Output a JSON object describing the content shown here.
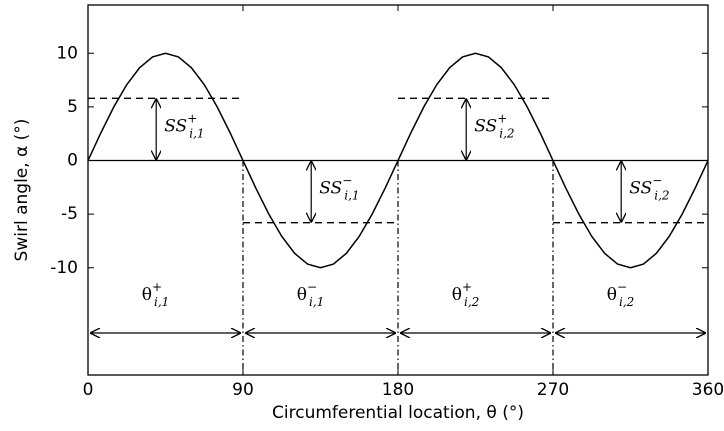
{
  "chart_data": {
    "type": "line",
    "xlabel": "Circumferential location, θ (°)",
    "ylabel": "Swirl angle, α (°)",
    "x": [
      0,
      7.5,
      15,
      22.5,
      30,
      37.5,
      45,
      52.5,
      60,
      67.5,
      75,
      82.5,
      90,
      97.5,
      105,
      112.5,
      120,
      127.5,
      135,
      142.5,
      150,
      157.5,
      165,
      172.5,
      180,
      187.5,
      195,
      202.5,
      210,
      217.5,
      225,
      232.5,
      240,
      247.5,
      255,
      262.5,
      270,
      277.5,
      285,
      292.5,
      300,
      307.5,
      315,
      322.5,
      330,
      337.5,
      345,
      352.5,
      360
    ],
    "series": [
      {
        "color": "#000000",
        "values": [
          0,
          2.59,
          5,
          7.07,
          8.66,
          9.66,
          10,
          9.66,
          8.66,
          7.07,
          5,
          2.59,
          0,
          -2.59,
          -5,
          -7.07,
          -8.66,
          -9.66,
          -10,
          -9.66,
          -8.66,
          -7.07,
          -5,
          -2.59,
          0,
          2.59,
          5,
          7.07,
          8.66,
          9.66,
          10,
          9.66,
          8.66,
          7.07,
          5,
          2.59,
          0,
          -2.59,
          -5,
          -7.07,
          -8.66,
          -9.66,
          -10,
          -9.66,
          -8.66,
          -7.07,
          -5,
          -2.59,
          0
        ]
      }
    ],
    "xlim": [
      0,
      360
    ],
    "ylim": [
      -20,
      14.5
    ],
    "xticks": [
      0,
      90,
      180,
      270,
      360
    ],
    "yticks": [
      -10,
      -5,
      0,
      5,
      10
    ],
    "reference_line": 0,
    "segments": [
      {
        "x": [
          0,
          90
        ],
        "level": 5.8,
        "ss": {
          "base": "SS",
          "sup": "+",
          "sub": "i,1"
        },
        "theta": {
          "base": "θ",
          "sup": "+",
          "sub": "i,1"
        }
      },
      {
        "x": [
          90,
          180
        ],
        "level": -5.8,
        "ss": {
          "base": "SS",
          "sup": "−",
          "sub": "i,1"
        },
        "theta": {
          "base": "θ",
          "sup": "−",
          "sub": "i,1"
        }
      },
      {
        "x": [
          180,
          270
        ],
        "level": 5.8,
        "ss": {
          "base": "SS",
          "sup": "+",
          "sub": "i,2"
        },
        "theta": {
          "base": "θ",
          "sup": "+",
          "sub": "i,2"
        }
      },
      {
        "x": [
          270,
          360
        ],
        "level": -5.8,
        "ss": {
          "base": "SS",
          "sup": "−",
          "sub": "i,2"
        },
        "theta": {
          "base": "θ",
          "sup": "−",
          "sub": "i,2"
        }
      }
    ]
  }
}
